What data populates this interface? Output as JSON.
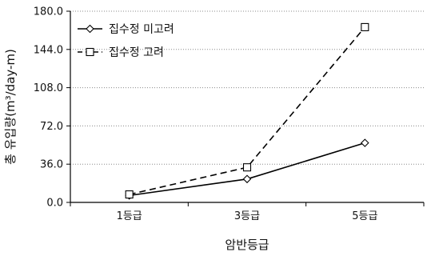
{
  "chart_data": {
    "type": "line",
    "categories": [
      "1등급",
      "3등급",
      "5등급"
    ],
    "xlabel": "암반등급",
    "ylabel": "총 유입량(m³/day-m)",
    "ylim": [
      0,
      180
    ],
    "yticks": [
      "0.0",
      "36.0",
      "72.0",
      "108.0",
      "144.0",
      "180.0"
    ],
    "grid": "horizontal",
    "legend_position": "top-left",
    "series": [
      {
        "name": "집수정 미고려",
        "values": [
          6.5,
          22,
          56
        ],
        "marker": "diamond",
        "line_style": "solid",
        "color": "#000000"
      },
      {
        "name": "집수정 고려",
        "values": [
          7.5,
          33,
          165
        ],
        "marker": "square",
        "line_style": "dashed",
        "color": "#000000"
      }
    ]
  }
}
